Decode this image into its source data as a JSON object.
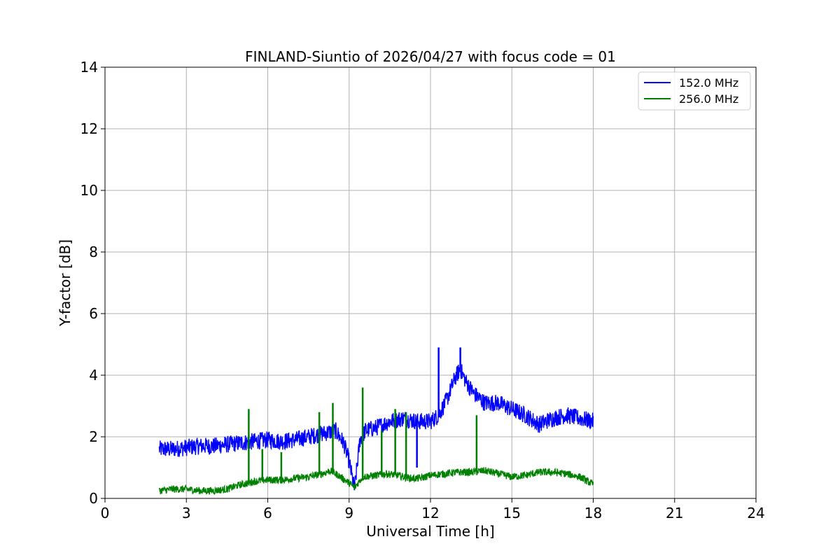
{
  "chart_data": {
    "type": "line",
    "title": "FINLAND-Siuntio of 2026/04/27 with focus code = 01",
    "xlabel": "Universal Time [h]",
    "ylabel": "Y-factor [dB]",
    "xlim": [
      0,
      24
    ],
    "ylim": [
      0,
      14
    ],
    "xticks": [
      0,
      3,
      6,
      9,
      12,
      15,
      18,
      21,
      24
    ],
    "yticks": [
      0,
      2,
      4,
      6,
      8,
      10,
      12,
      14
    ],
    "grid": true,
    "legend_position": "top-right",
    "series": [
      {
        "name": "152.0 MHz",
        "color": "#0000ff",
        "x": [
          2.0,
          2.5,
          3.0,
          3.5,
          4.0,
          4.5,
          5.0,
          5.5,
          6.0,
          6.5,
          7.0,
          7.5,
          8.0,
          8.5,
          8.8,
          9.0,
          9.2,
          9.4,
          9.6,
          10.0,
          10.5,
          11.0,
          11.5,
          12.0,
          12.3,
          12.6,
          12.9,
          13.1,
          13.3,
          13.6,
          14.0,
          14.5,
          15.0,
          15.5,
          16.0,
          16.5,
          17.0,
          17.5,
          18.0
        ],
        "y": [
          1.6,
          1.6,
          1.65,
          1.7,
          1.7,
          1.75,
          1.8,
          1.85,
          1.9,
          1.85,
          1.9,
          2.0,
          2.1,
          2.2,
          1.8,
          1.2,
          0.3,
          1.9,
          2.2,
          2.3,
          2.5,
          2.6,
          2.5,
          2.5,
          2.7,
          3.2,
          3.9,
          4.2,
          3.8,
          3.4,
          3.1,
          3.1,
          2.9,
          2.7,
          2.4,
          2.6,
          2.7,
          2.6,
          2.5
        ]
      },
      {
        "name": "256.0 MHz",
        "color": "#008000",
        "x": [
          2.0,
          2.5,
          3.0,
          3.5,
          4.0,
          4.5,
          5.0,
          5.3,
          5.5,
          6.0,
          6.5,
          7.0,
          7.5,
          8.0,
          8.3,
          8.6,
          9.0,
          9.2,
          9.5,
          10.0,
          10.4,
          10.8,
          11.0,
          11.3,
          11.6,
          12.0,
          12.5,
          13.0,
          13.5,
          14.0,
          14.5,
          15.0,
          15.5,
          16.0,
          16.5,
          17.0,
          17.5,
          18.0
        ],
        "y": [
          0.25,
          0.3,
          0.3,
          0.25,
          0.25,
          0.3,
          0.45,
          0.5,
          0.55,
          0.6,
          0.6,
          0.65,
          0.7,
          0.8,
          0.9,
          0.75,
          0.5,
          0.35,
          0.7,
          0.75,
          0.8,
          0.75,
          0.7,
          0.65,
          0.65,
          0.75,
          0.8,
          0.85,
          0.85,
          0.9,
          0.8,
          0.7,
          0.75,
          0.85,
          0.85,
          0.8,
          0.7,
          0.45
        ]
      }
    ],
    "spikes": [
      {
        "series": 1,
        "x": 5.3,
        "y": 2.9
      },
      {
        "series": 1,
        "x": 5.8,
        "y": 1.6
      },
      {
        "series": 1,
        "x": 6.5,
        "y": 1.5
      },
      {
        "series": 1,
        "x": 7.9,
        "y": 2.8
      },
      {
        "series": 1,
        "x": 8.4,
        "y": 3.1
      },
      {
        "series": 1,
        "x": 9.5,
        "y": 3.6
      },
      {
        "series": 1,
        "x": 10.2,
        "y": 2.2
      },
      {
        "series": 1,
        "x": 10.7,
        "y": 2.9
      },
      {
        "series": 1,
        "x": 11.1,
        "y": 2.8
      },
      {
        "series": 1,
        "x": 13.7,
        "y": 2.7
      },
      {
        "series": 0,
        "x": 11.5,
        "y": 1.0
      },
      {
        "series": 0,
        "x": 12.3,
        "y": 4.9
      },
      {
        "series": 0,
        "x": 13.1,
        "y": 4.9
      }
    ]
  }
}
